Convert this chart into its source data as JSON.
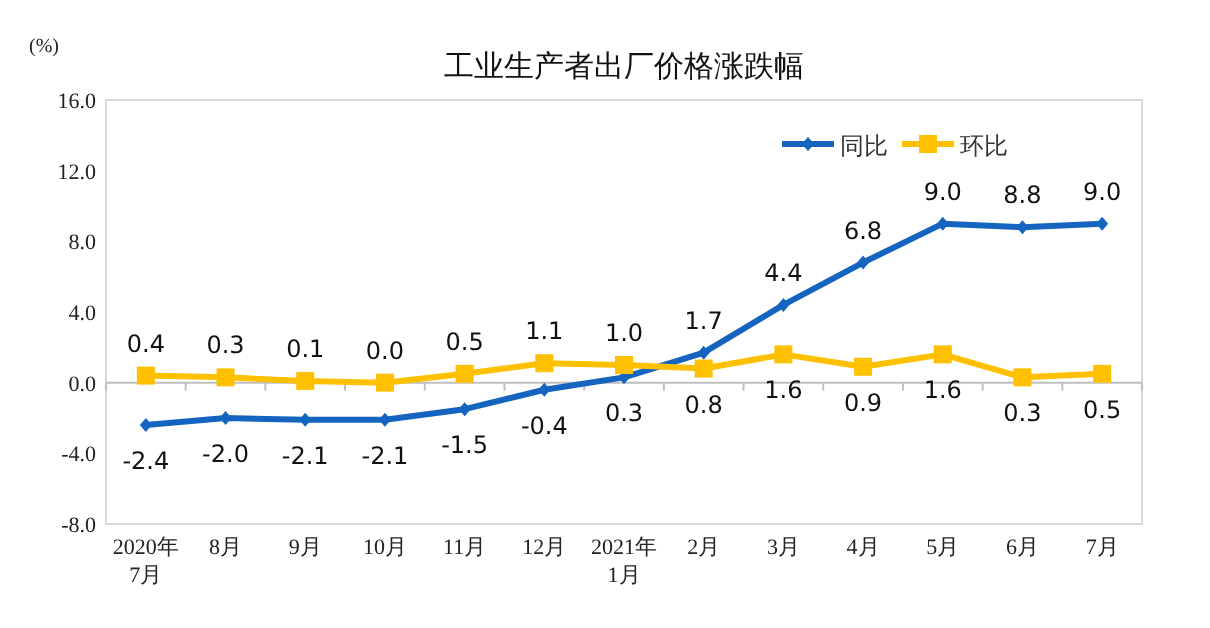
{
  "chart_data": {
    "type": "line",
    "title": "工业生产者出厂价格涨跌幅",
    "ylabel": "(%)",
    "categories": [
      "2020年\n7月",
      "8月",
      "9月",
      "10月",
      "11月",
      "12月",
      "2021年\n1月",
      "2月",
      "3月",
      "4月",
      "5月",
      "6月",
      "7月"
    ],
    "series": [
      {
        "name": "同比",
        "color": "#1565c0",
        "marker": "diamond",
        "values": [
          -2.4,
          -2.0,
          -2.1,
          -2.1,
          -1.5,
          -0.4,
          0.3,
          1.7,
          4.4,
          6.8,
          9.0,
          8.8,
          9.0
        ],
        "value_labels": [
          "-2.4",
          "-2.0",
          "-2.1",
          "-2.1",
          "-1.5",
          "-0.4",
          "0.3",
          "1.7",
          "4.4",
          "6.8",
          "9.0",
          "8.8",
          "9.0"
        ]
      },
      {
        "name": "环比",
        "color": "#ffc000",
        "marker": "square",
        "values": [
          0.4,
          0.3,
          0.1,
          0.0,
          0.5,
          1.1,
          1.0,
          0.8,
          1.6,
          0.9,
          1.6,
          0.3,
          0.5
        ],
        "value_labels": [
          "0.4",
          "0.3",
          "0.1",
          "0.0",
          "0.5",
          "1.1",
          "1.0",
          "0.8",
          "1.6",
          "0.9",
          "1.6",
          "0.3",
          "0.5"
        ]
      }
    ],
    "ylim": [
      -8,
      16
    ],
    "yticks": [
      {
        "value": -8,
        "label": "-8.0"
      },
      {
        "value": -4,
        "label": "-4.0"
      },
      {
        "value": 0,
        "label": "0.0"
      },
      {
        "value": 4,
        "label": "4.0"
      },
      {
        "value": 8,
        "label": "8.0"
      },
      {
        "value": 12,
        "label": "12.0"
      },
      {
        "value": 16,
        "label": "16.0"
      }
    ],
    "legend": "top right"
  }
}
